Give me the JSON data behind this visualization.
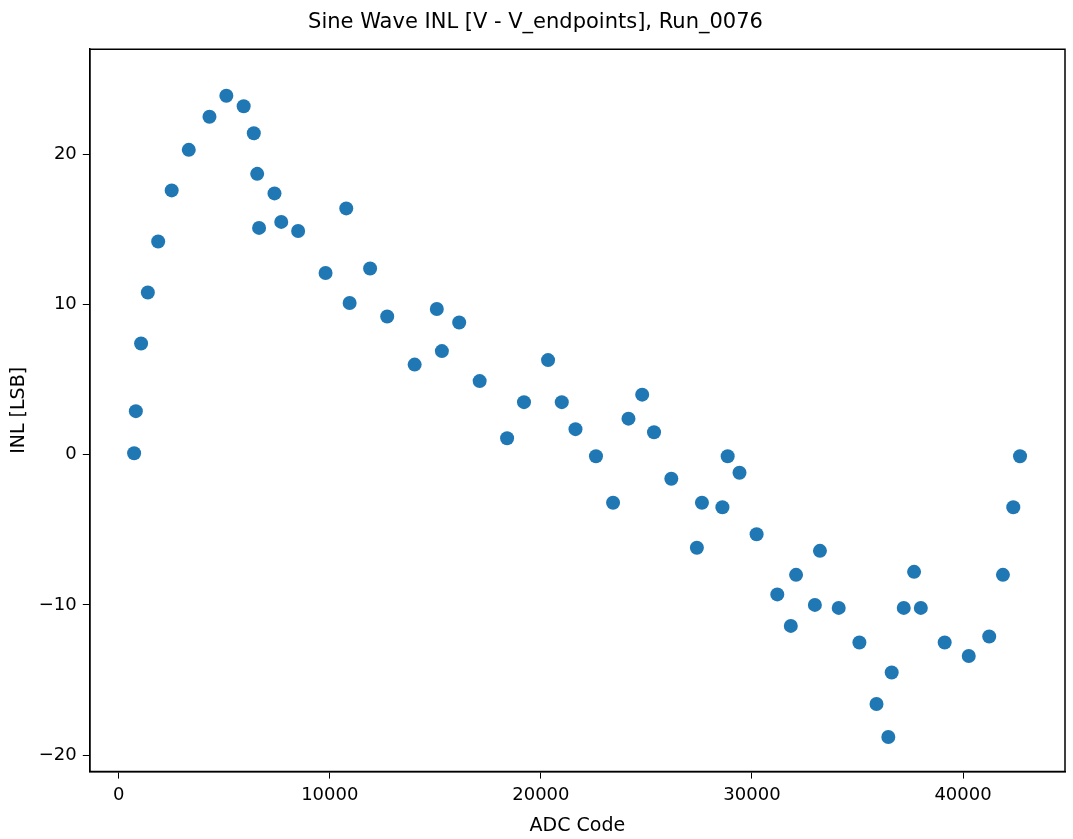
{
  "chart_data": {
    "type": "scatter",
    "title": "Sine Wave INL [V - V_endpoints], Run_0076",
    "xlabel": "ADC Code",
    "ylabel": "INL [LSB]",
    "x": [
      730,
      812,
      1060,
      1380,
      1870,
      2510,
      3320,
      4300,
      5100,
      5920,
      6400,
      6560,
      6650,
      7380,
      7700,
      8500,
      9800,
      10780,
      10940,
      11910,
      12720,
      14020,
      15070,
      15310,
      16130,
      17100,
      18400,
      19200,
      20340,
      20990,
      21640,
      22610,
      23420,
      24150,
      24800,
      25360,
      26180,
      27390,
      27630,
      28600,
      28850,
      29410,
      30220,
      31200,
      31840,
      32090,
      32980,
      33220,
      34110,
      35090,
      35900,
      36460,
      36620,
      37190,
      37680,
      38000,
      39130,
      40270,
      41240,
      41890,
      42380,
      42700
    ],
    "series": [
      {
        "color": "#1f77b4",
        "values": [
          0.1,
          2.9,
          7.4,
          10.8,
          14.2,
          17.6,
          20.3,
          22.5,
          23.9,
          23.2,
          21.4,
          18.7,
          15.1,
          17.4,
          15.5,
          14.9,
          12.1,
          16.4,
          10.1,
          12.4,
          9.2,
          6.0,
          9.7,
          6.9,
          8.8,
          4.9,
          1.1,
          3.5,
          6.3,
          3.5,
          1.7,
          -0.1,
          -3.2,
          2.4,
          4.0,
          1.5,
          -1.6,
          -6.2,
          -3.2,
          -3.5,
          -0.1,
          -1.2,
          -5.3,
          -9.3,
          -11.4,
          -8.0,
          -10.0,
          -6.4,
          -10.2,
          -12.5,
          -16.6,
          -18.8,
          -14.5,
          -10.2,
          -7.8,
          -10.2,
          -12.5,
          -13.4,
          -12.1,
          -8.0,
          -3.5,
          -0.1
        ]
      }
    ],
    "xlim": [
      -1370,
      44830
    ],
    "ylim": [
      -21.1,
      27.0
    ],
    "xticks": [
      0,
      10000,
      20000,
      30000,
      40000
    ],
    "yticks": [
      -20,
      -10,
      0,
      10,
      20
    ],
    "marker": "circle",
    "grid": false,
    "legend": false
  }
}
